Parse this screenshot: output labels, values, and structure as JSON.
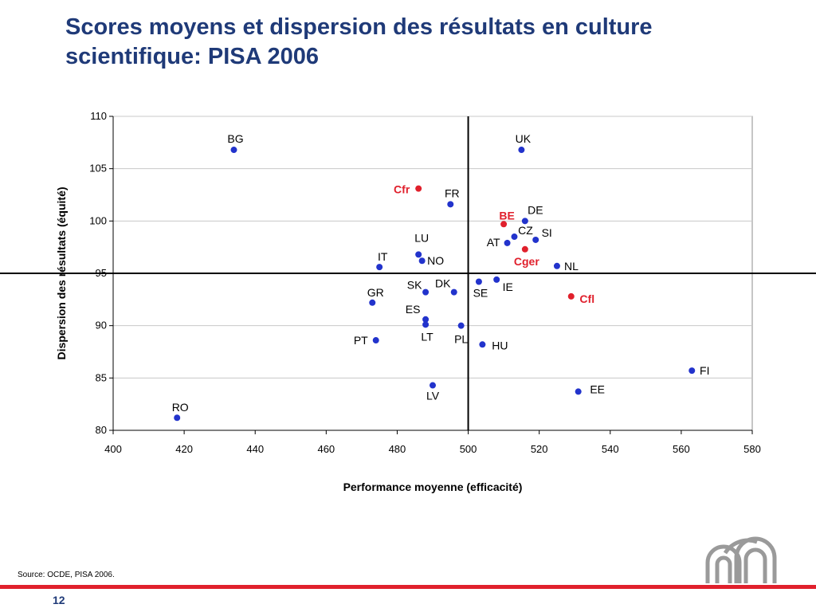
{
  "slide": {
    "title": "Scores moyens et dispersion des résultats en culture scientifique: PISA 2006",
    "source": "Source:  OCDE, PISA 2006.",
    "page_number": "12",
    "accent_color": "#e0202c",
    "title_color": "#1f3a78"
  },
  "chart_data": {
    "type": "scatter",
    "title": "",
    "xlabel": "Performance moyenne (efficacité)",
    "ylabel": "Dispersion des résultats (équité)",
    "xlim": [
      400,
      580
    ],
    "ylim": [
      80,
      110
    ],
    "x_ticks": [
      400,
      420,
      440,
      460,
      480,
      500,
      520,
      540,
      560,
      580
    ],
    "y_ticks": [
      80,
      85,
      90,
      95,
      100,
      105,
      110
    ],
    "grid": "horizontal",
    "reference_lines": {
      "x": 500,
      "y": 95
    },
    "series": [
      {
        "color": "#2233cc",
        "points": [
          {
            "label": "BG",
            "x": 434,
            "y": 106.8
          },
          {
            "label": "UK",
            "x": 515,
            "y": 106.8
          },
          {
            "label": "FR",
            "x": 495,
            "y": 101.6
          },
          {
            "label": "DE",
            "x": 516,
            "y": 100.0
          },
          {
            "label": "CZ",
            "x": 513,
            "y": 98.5
          },
          {
            "label": "SI",
            "x": 519,
            "y": 98.2
          },
          {
            "label": "AT",
            "x": 511,
            "y": 97.9
          },
          {
            "label": "LU",
            "x": 486,
            "y": 96.8
          },
          {
            "label": "NO",
            "x": 487,
            "y": 96.2
          },
          {
            "label": "IT",
            "x": 475,
            "y": 95.6
          },
          {
            "label": "NL",
            "x": 525,
            "y": 95.7
          },
          {
            "label": "SK",
            "x": 488,
            "y": 93.2
          },
          {
            "label": "DK",
            "x": 496,
            "y": 93.2
          },
          {
            "label": "SE",
            "x": 503,
            "y": 94.2
          },
          {
            "label": "IE",
            "x": 508,
            "y": 94.4
          },
          {
            "label": "GR",
            "x": 473,
            "y": 92.2
          },
          {
            "label": "ES",
            "x": 488,
            "y": 90.6
          },
          {
            "label": "LT",
            "x": 488,
            "y": 90.1
          },
          {
            "label": "PL",
            "x": 498,
            "y": 90.0
          },
          {
            "label": "PT",
            "x": 474,
            "y": 88.6
          },
          {
            "label": "HU",
            "x": 504,
            "y": 88.2
          },
          {
            "label": "FI",
            "x": 563,
            "y": 85.7
          },
          {
            "label": "EE",
            "x": 531,
            "y": 83.7
          },
          {
            "label": "LV",
            "x": 490,
            "y": 84.3
          },
          {
            "label": "RO",
            "x": 418,
            "y": 81.2
          }
        ]
      },
      {
        "color": "#e0202c",
        "points": [
          {
            "label": "Cfr",
            "x": 486,
            "y": 103.1
          },
          {
            "label": "BE",
            "x": 510,
            "y": 99.7
          },
          {
            "label": "Cger",
            "x": 516,
            "y": 97.3
          },
          {
            "label": "Cfl",
            "x": 529,
            "y": 92.8
          }
        ]
      }
    ]
  }
}
